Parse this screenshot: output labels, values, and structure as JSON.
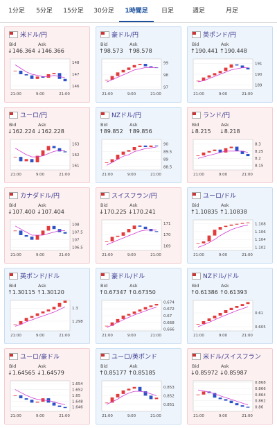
{
  "tabs": [
    "1分足",
    "5分足",
    "15分足",
    "30分足",
    "1時間足",
    "日足",
    "週足",
    "月足"
  ],
  "active_tab": 4,
  "labels": {
    "bid": "Bid",
    "ask": "Ask"
  },
  "chart_x_labels": [
    "21:00",
    "9:00",
    "21:00"
  ],
  "cards": [
    {
      "name": "米ドル/円",
      "direction": "down",
      "bid": "↓146.364",
      "ask": "↓146.366",
      "ylim": [
        145.7,
        148.3
      ],
      "yticks": [
        146,
        147,
        148
      ],
      "closes": [
        147.3,
        147.0,
        146.9,
        146.6,
        146.8,
        146.7,
        147.0,
        147.1,
        146.6,
        146.4
      ],
      "ma": [
        147.8,
        147.5,
        147.2,
        147.0,
        146.9,
        146.8,
        146.8,
        146.9,
        146.8,
        146.7
      ]
    },
    {
      "name": "豪ドル/円",
      "direction": "up",
      "bid": "↑98.573",
      "ask": "↑98.578",
      "ylim": [
        96.8,
        99.3
      ],
      "yticks": [
        97,
        98,
        99
      ],
      "closes": [
        97.6,
        97.9,
        98.2,
        98.4,
        98.6,
        98.8,
        98.9,
        98.7,
        98.6,
        98.57
      ],
      "ma": [
        97.4,
        97.6,
        97.8,
        98.0,
        98.2,
        98.4,
        98.5,
        98.6,
        98.6,
        98.6
      ]
    },
    {
      "name": "英ポンド/円",
      "direction": "up",
      "bid": "↑190.441",
      "ask": "↑190.448",
      "ylim": [
        188.6,
        191.4
      ],
      "yticks": [
        189,
        190,
        191
      ],
      "closes": [
        189.4,
        189.7,
        189.9,
        190.1,
        190.3,
        190.6,
        190.9,
        190.8,
        190.6,
        190.44
      ],
      "ma": [
        189.3,
        189.4,
        189.6,
        189.8,
        190.0,
        190.2,
        190.4,
        190.5,
        190.6,
        190.6
      ]
    },
    {
      "name": "ユーロ/円",
      "direction": "down",
      "bid": "↓162.224",
      "ask": "↓162.228",
      "ylim": [
        160.6,
        163.4
      ],
      "yticks": [
        161,
        162,
        163
      ],
      "closes": [
        161.8,
        161.4,
        161.6,
        161.3,
        161.9,
        162.4,
        162.8,
        162.6,
        162.3,
        162.22
      ],
      "ma": [
        162.6,
        162.3,
        162.0,
        161.8,
        161.8,
        161.9,
        162.1,
        162.3,
        162.4,
        162.4
      ]
    },
    {
      "name": "NZドル/円",
      "direction": "up",
      "bid": "↑89.852",
      "ask": "↑89.856",
      "ylim": [
        88.3,
        90.3
      ],
      "yticks": [
        88.5,
        89,
        89.5,
        90
      ],
      "closes": [
        88.8,
        89.0,
        89.3,
        89.5,
        89.6,
        89.8,
        89.9,
        89.8,
        89.9,
        89.85
      ],
      "ma": [
        88.6,
        88.8,
        89.0,
        89.2,
        89.3,
        89.5,
        89.6,
        89.7,
        89.75,
        89.8
      ]
    },
    {
      "name": "ランド/円",
      "direction": "down",
      "bid": "↓8.215",
      "ask": "↓8.218",
      "ylim": [
        8.12,
        8.33
      ],
      "yticks": [
        8.15,
        8.2,
        8.25,
        8.3
      ],
      "closes": [
        8.22,
        8.24,
        8.25,
        8.26,
        8.24,
        8.27,
        8.28,
        8.25,
        8.23,
        8.215
      ],
      "ma": [
        8.2,
        8.21,
        8.22,
        8.23,
        8.24,
        8.25,
        8.25,
        8.25,
        8.25,
        8.24
      ]
    },
    {
      "name": "カナダドル/円",
      "direction": "down",
      "bid": "↓107.400",
      "ask": "↓107.404",
      "ylim": [
        106.3,
        108.3
      ],
      "yticks": [
        106.5,
        107,
        107.5,
        108
      ],
      "closes": [
        107.6,
        107.3,
        107.2,
        107.0,
        107.3,
        107.6,
        107.9,
        107.7,
        107.5,
        107.4
      ],
      "ma": [
        107.9,
        107.7,
        107.5,
        107.3,
        107.3,
        107.3,
        107.4,
        107.5,
        107.6,
        107.6
      ]
    },
    {
      "name": "スイスフラン/円",
      "direction": "down",
      "bid": "↓170.225",
      "ask": "↓170.241",
      "ylim": [
        168.6,
        171.3
      ],
      "yticks": [
        169,
        170,
        171
      ],
      "closes": [
        169.4,
        169.8,
        169.9,
        170.2,
        170.5,
        170.8,
        170.7,
        170.5,
        170.3,
        170.23
      ],
      "ma": [
        169.1,
        169.3,
        169.5,
        169.7,
        169.9,
        170.1,
        170.3,
        170.4,
        170.4,
        170.4
      ]
    },
    {
      "name": "ユーロ/ドル",
      "direction": "up",
      "bid": "↑1.10835",
      "ask": "↑1.10838",
      "ylim": [
        1.1012,
        1.109
      ],
      "yticks": [
        1.102,
        1.104,
        1.106,
        1.108
      ],
      "closes": [
        1.103,
        1.1035,
        1.105,
        1.1065,
        1.1072,
        1.1075,
        1.1078,
        1.108,
        1.1082,
        1.10835
      ],
      "ma": [
        1.102,
        1.1025,
        1.1032,
        1.104,
        1.105,
        1.1058,
        1.1065,
        1.107,
        1.1074,
        1.1077
      ]
    },
    {
      "name": "英ポンド/ドル",
      "direction": "up",
      "bid": "↑1.30115",
      "ask": "↑1.30120",
      "ylim": [
        1.2965,
        1.3012
      ],
      "yticks": [
        1.298,
        1.3
      ],
      "closes": [
        1.2975,
        1.298,
        1.2985,
        1.2988,
        1.2992,
        1.2995,
        1.2998,
        1.3002,
        1.3008,
        1.30115
      ],
      "ma": [
        1.2972,
        1.2975,
        1.2979,
        1.2982,
        1.2985,
        1.2988,
        1.2991,
        1.2994,
        1.2998,
        1.3002
      ]
    },
    {
      "name": "豪ドル/ドル",
      "direction": "up",
      "bid": "↑0.67347",
      "ask": "↑0.67350",
      "ylim": [
        0.6655,
        0.6745
      ],
      "yticks": [
        0.666,
        0.668,
        0.67,
        0.672,
        0.674
      ],
      "closes": [
        0.667,
        0.668,
        0.669,
        0.67,
        0.6705,
        0.6712,
        0.6718,
        0.6725,
        0.673,
        0.67347
      ],
      "ma": [
        0.6665,
        0.6672,
        0.668,
        0.6688,
        0.6695,
        0.6702,
        0.6708,
        0.6714,
        0.672,
        0.6725
      ]
    },
    {
      "name": "NZドル/ドル",
      "direction": "up",
      "bid": "↑0.61386",
      "ask": "↑0.61393",
      "ylim": [
        0.6035,
        0.6145
      ],
      "yticks": [
        0.605,
        0.61
      ],
      "closes": [
        0.606,
        0.607,
        0.608,
        0.609,
        0.61,
        0.611,
        0.6118,
        0.6125,
        0.6132,
        0.61386
      ],
      "ma": [
        0.605,
        0.6058,
        0.6066,
        0.6075,
        0.6084,
        0.6092,
        0.61,
        0.6108,
        0.6115,
        0.6122
      ]
    },
    {
      "name": "ユーロ/豪ドル",
      "direction": "down",
      "bid": "↓1.64565",
      "ask": "↓1.64579",
      "ylim": [
        1.6445,
        1.655
      ],
      "yticks": [
        1.646,
        1.648,
        1.65,
        1.652,
        1.654
      ],
      "closes": [
        1.65,
        1.649,
        1.6485,
        1.6475,
        1.6478,
        1.649,
        1.6475,
        1.6465,
        1.646,
        1.64565
      ],
      "ma": [
        1.652,
        1.651,
        1.65,
        1.6492,
        1.6486,
        1.6484,
        1.6482,
        1.6478,
        1.6472,
        1.6468
      ]
    },
    {
      "name": "ユーロ/英ポンド",
      "direction": "up",
      "bid": "↑0.85177",
      "ask": "↑0.85185",
      "ylim": [
        0.8502,
        0.8537
      ],
      "yticks": [
        0.851,
        0.852,
        0.853
      ],
      "closes": [
        0.8512,
        0.8518,
        0.8522,
        0.8526,
        0.8528,
        0.853,
        0.8525,
        0.852,
        0.8516,
        0.85177
      ],
      "ma": [
        0.851,
        0.8513,
        0.8516,
        0.852,
        0.8523,
        0.8525,
        0.8525,
        0.8524,
        0.8522,
        0.852
      ]
    },
    {
      "name": "米ドル/スイスフラン",
      "direction": "down",
      "bid": "↓0.85972",
      "ask": "↓0.85987",
      "ylim": [
        0.8585,
        0.8685
      ],
      "yticks": [
        0.86,
        0.862,
        0.864,
        0.866,
        0.868
      ],
      "closes": [
        0.864,
        0.865,
        0.8645,
        0.863,
        0.8625,
        0.862,
        0.8612,
        0.8605,
        0.86,
        0.85972
      ],
      "ma": [
        0.8655,
        0.8652,
        0.8648,
        0.8642,
        0.8636,
        0.863,
        0.8624,
        0.8618,
        0.8612,
        0.8606
      ]
    }
  ]
}
